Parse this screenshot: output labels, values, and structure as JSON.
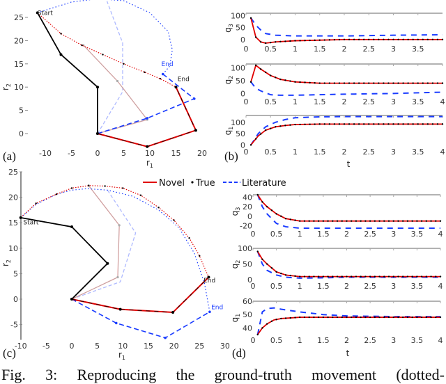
{
  "caption": "Fig. 3: Reproducing the ground-truth movement (dotted-",
  "legend": {
    "novel": "Novel",
    "true": "True",
    "literature": "Literature"
  },
  "colors": {
    "novel": "#e00000",
    "true": "#000000",
    "literature": "#1a3cff"
  },
  "chart_data": [
    {
      "id": "a",
      "panel_label": "(a)",
      "type": "line",
      "xlabel": "r1",
      "ylabel": "r2",
      "xlim": [
        -12,
        21
      ],
      "ylim": [
        -3,
        29
      ],
      "xticks": [
        -10,
        -5,
        0,
        5,
        10,
        15,
        20
      ],
      "yticks": [
        0,
        5,
        10,
        15,
        20,
        25
      ],
      "annotations": [
        {
          "text": "Start",
          "x": -11.5,
          "y": 25.5
        },
        {
          "text": "End",
          "x": 15.3,
          "y": 11.3
        },
        {
          "text": "End",
          "x": 12.2,
          "y": 14.5,
          "series": "literature"
        }
      ],
      "arms": {
        "start": [
          [
            0,
            0
          ],
          [
            0,
            10
          ],
          [
            -7,
            17
          ],
          [
            -11.5,
            26
          ]
        ],
        "novel_end": [
          [
            0,
            0
          ],
          [
            9.5,
            -2.8
          ],
          [
            18.8,
            0.7
          ],
          [
            15,
            10
          ]
        ],
        "novel_mid": [
          [
            0,
            0
          ],
          [
            9.5,
            3
          ],
          [
            3.8,
            11.3
          ],
          [
            -2.7,
            19
          ]
        ],
        "literature_end": [
          [
            0,
            0
          ],
          [
            9.5,
            3.3
          ],
          [
            18.5,
            7.5
          ],
          [
            12.5,
            12.8
          ]
        ],
        "literature_mid": [
          [
            0,
            0
          ],
          [
            4.8,
            9
          ],
          [
            4.8,
            19.5
          ],
          [
            1.8,
            28.5
          ]
        ]
      },
      "trajectories": {
        "novel": [
          [
            -11.5,
            26
          ],
          [
            -7,
            21.5
          ],
          [
            -3,
            19
          ],
          [
            1,
            17
          ],
          [
            5,
            15
          ],
          [
            9,
            13.2
          ],
          [
            12,
            11.8
          ],
          [
            15,
            10
          ]
        ],
        "literature": [
          [
            -11.5,
            26
          ],
          [
            -5,
            28.3
          ],
          [
            0,
            29
          ],
          [
            5,
            28.6
          ],
          [
            10,
            26
          ],
          [
            13.5,
            22
          ],
          [
            14.3,
            18
          ],
          [
            13.8,
            14.5
          ],
          [
            12.5,
            12.8
          ]
        ]
      }
    },
    {
      "id": "b",
      "panel_label": "(b)",
      "type": "line",
      "xlabel": "t",
      "subplots": [
        {
          "ylabel": "q3",
          "xlim": [
            0,
            4
          ],
          "ylim": [
            -15,
            110
          ],
          "yticks": [
            0,
            50,
            100
          ],
          "xticks": [
            0,
            0.5,
            1,
            1.5,
            2,
            2.5,
            3,
            3.5
          ],
          "x": [
            0.1,
            0.2,
            0.3,
            0.4,
            0.6,
            1,
            2,
            3,
            4
          ],
          "series": [
            {
              "name": "Novel",
              "values": [
                90,
                10,
                -10,
                -15,
                -10,
                -5,
                0,
                0,
                0
              ]
            },
            {
              "name": "Literature",
              "values": [
                90,
                60,
                40,
                25,
                18,
                15,
                15,
                18,
                20
              ]
            }
          ]
        },
        {
          "ylabel": "q2",
          "xlim": [
            0,
            4
          ],
          "ylim": [
            -10,
            115
          ],
          "yticks": [
            0,
            50,
            100
          ],
          "xticks": [
            0,
            0.5,
            1,
            1.5,
            2,
            2.5,
            3,
            3.5,
            4
          ],
          "x": [
            0.1,
            0.2,
            0.3,
            0.5,
            0.7,
            1,
            1.5,
            2,
            3,
            4
          ],
          "series": [
            {
              "name": "Novel",
              "values": [
                45,
                110,
                95,
                70,
                55,
                45,
                40,
                40,
                40,
                40
              ]
            },
            {
              "name": "Literature",
              "values": [
                45,
                20,
                10,
                -5,
                -7,
                -7,
                -5,
                -3,
                0,
                5
              ]
            }
          ]
        },
        {
          "ylabel": "q1",
          "xlim": [
            0,
            4
          ],
          "ylim": [
            -5,
            130
          ],
          "yticks": [
            0,
            50,
            100
          ],
          "xticks": [
            0,
            0.5,
            1,
            1.5,
            2,
            2.5,
            3,
            3.5,
            4
          ],
          "x": [
            0.1,
            0.25,
            0.4,
            0.6,
            0.8,
            1,
            1.5,
            2,
            3,
            4
          ],
          "series": [
            {
              "name": "Novel",
              "values": [
                0,
                40,
                65,
                80,
                86,
                90,
                92,
                92,
                92,
                92
              ]
            },
            {
              "name": "Literature",
              "values": [
                0,
                50,
                80,
                100,
                112,
                120,
                124,
                125,
                125,
                125
              ]
            }
          ]
        }
      ]
    },
    {
      "id": "c",
      "panel_label": "(c)",
      "type": "line",
      "xlabel": "r1",
      "ylabel": "r2",
      "xlim": [
        -10,
        31
      ],
      "ylim": [
        -8,
        25
      ],
      "xticks": [
        -10,
        -5,
        0,
        5,
        10,
        15,
        20,
        25,
        30
      ],
      "yticks": [
        -5,
        0,
        5,
        10,
        15,
        20,
        25
      ],
      "annotations": [
        {
          "text": "Start",
          "x": -9.5,
          "y": 14.7
        },
        {
          "text": "End",
          "x": 25.8,
          "y": 3.3
        },
        {
          "text": "End",
          "x": 27.3,
          "y": -2,
          "series": "literature"
        }
      ],
      "arms": {
        "start": [
          [
            0,
            0
          ],
          [
            7,
            7
          ],
          [
            0,
            14.2
          ],
          [
            -10,
            16
          ]
        ],
        "novel_end": [
          [
            0,
            0
          ],
          [
            9.5,
            -2
          ],
          [
            19.8,
            -2.6
          ],
          [
            26.8,
            4.3
          ]
        ],
        "novel_mid": [
          [
            0,
            0
          ],
          [
            9,
            4.3
          ],
          [
            9.3,
            14.5
          ],
          [
            3.3,
            22.3
          ]
        ],
        "literature_end": [
          [
            0,
            0
          ],
          [
            8.7,
            -4.7
          ],
          [
            18.3,
            -7.6
          ],
          [
            27,
            -2.5
          ]
        ],
        "literature_mid": [
          [
            0,
            0
          ],
          [
            9.5,
            3.4
          ],
          [
            12.5,
            13
          ],
          [
            7,
            21.4
          ]
        ]
      },
      "trajectories": {
        "novel": [
          [
            -10,
            16
          ],
          [
            -7,
            18.8
          ],
          [
            -3,
            20.6
          ],
          [
            0,
            21.8
          ],
          [
            3.3,
            22.3
          ],
          [
            6.5,
            22.2
          ],
          [
            10,
            21.8
          ],
          [
            13.5,
            20.4
          ],
          [
            17,
            18
          ],
          [
            20,
            15.5
          ],
          [
            23,
            12
          ],
          [
            25,
            8.5
          ],
          [
            26.8,
            4.3
          ]
        ],
        "literature": [
          [
            -10,
            16
          ],
          [
            -7,
            18.6
          ],
          [
            -3,
            20.6
          ],
          [
            0,
            21.4
          ],
          [
            3,
            21.7
          ],
          [
            7,
            21.4
          ],
          [
            12,
            20.2
          ],
          [
            17,
            17.5
          ],
          [
            21,
            14
          ],
          [
            24,
            9
          ],
          [
            26,
            3
          ],
          [
            27,
            -2.5
          ]
        ]
      }
    },
    {
      "id": "d",
      "panel_label": "(d)",
      "type": "line",
      "xlabel": "t",
      "subplots": [
        {
          "ylabel": "q3",
          "xlim": [
            0,
            4
          ],
          "ylim": [
            -25,
            45
          ],
          "yticks": [
            -20,
            0,
            20,
            40
          ],
          "xticks": [
            0,
            0.5,
            1,
            1.5,
            2,
            2.5,
            3,
            3.5,
            4
          ],
          "x": [
            0.1,
            0.2,
            0.3,
            0.5,
            0.7,
            1,
            1.5,
            2,
            3,
            4
          ],
          "series": [
            {
              "name": "Novel",
              "values": [
                45,
                30,
                20,
                5,
                -5,
                -10,
                -10,
                -10,
                -10,
                -10
              ]
            },
            {
              "name": "Literature",
              "values": [
                45,
                20,
                5,
                -15,
                -22,
                -25,
                -25,
                -25,
                -25,
                -25
              ]
            }
          ]
        },
        {
          "ylabel": "q2",
          "xlim": [
            0,
            4
          ],
          "ylim": [
            -2,
            100
          ],
          "yticks": [
            0,
            50,
            100
          ],
          "xticks": [
            0,
            0.5,
            1,
            1.5,
            2,
            2.5,
            3,
            3.5,
            4
          ],
          "x": [
            0.1,
            0.2,
            0.3,
            0.5,
            0.7,
            1,
            1.5,
            2,
            3,
            4
          ],
          "series": [
            {
              "name": "Novel",
              "values": [
                90,
                65,
                50,
                25,
                15,
                10,
                10,
                10,
                10,
                10
              ]
            },
            {
              "name": "Literature",
              "values": [
                90,
                50,
                30,
                15,
                8,
                5,
                6,
                8,
                8,
                8
              ]
            }
          ]
        },
        {
          "ylabel": "q1",
          "xlim": [
            0,
            4
          ],
          "ylim": [
            35,
            60
          ],
          "yticks": [
            40,
            50,
            60
          ],
          "xticks": [
            0,
            0.5,
            1,
            1.5,
            2,
            2.5,
            3,
            3.5,
            4
          ],
          "x": [
            0.1,
            0.2,
            0.3,
            0.45,
            0.6,
            1,
            1.5,
            2,
            3,
            4
          ],
          "series": [
            {
              "name": "Novel",
              "values": [
                35,
                40,
                43,
                46,
                47,
                48,
                48,
                48,
                48,
                48
              ]
            },
            {
              "name": "Literature",
              "values": [
                35,
                52,
                54.5,
                55,
                54,
                52,
                50,
                49,
                48.5,
                48.5
              ]
            }
          ]
        }
      ]
    }
  ]
}
